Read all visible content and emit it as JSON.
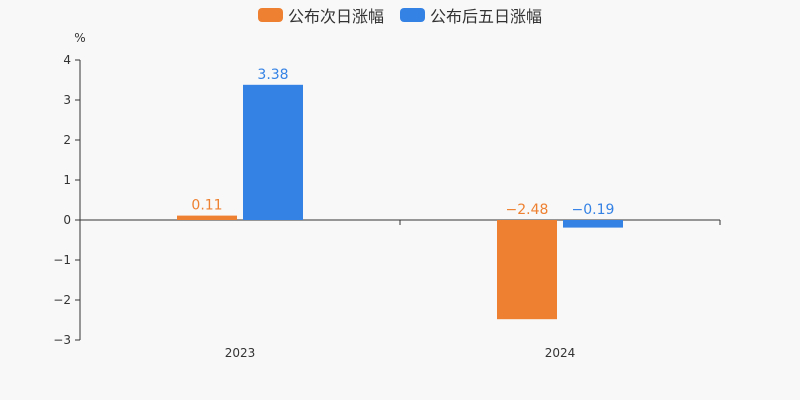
{
  "chart_data": {
    "type": "bar",
    "categories": [
      "2023",
      "2024"
    ],
    "series": [
      {
        "name": "公布次日涨幅",
        "values": [
          0.11,
          -2.48
        ],
        "color": "#ee8131"
      },
      {
        "name": "公布后五日涨幅",
        "values": [
          3.38,
          -0.19
        ],
        "color": "#3582e5"
      }
    ],
    "data_labels": [
      [
        "0.11",
        "−2.48"
      ],
      [
        "3.38",
        "−0.19"
      ]
    ],
    "ylabel": "%",
    "ylim": [
      -3,
      4
    ],
    "yticks": [
      4,
      3,
      2,
      1,
      0,
      -1,
      -2,
      -3
    ],
    "ytick_labels": [
      "4",
      "3",
      "2",
      "1",
      "0",
      "−1",
      "−2",
      "−3"
    ],
    "grid": false,
    "legend_position": "top-center"
  }
}
